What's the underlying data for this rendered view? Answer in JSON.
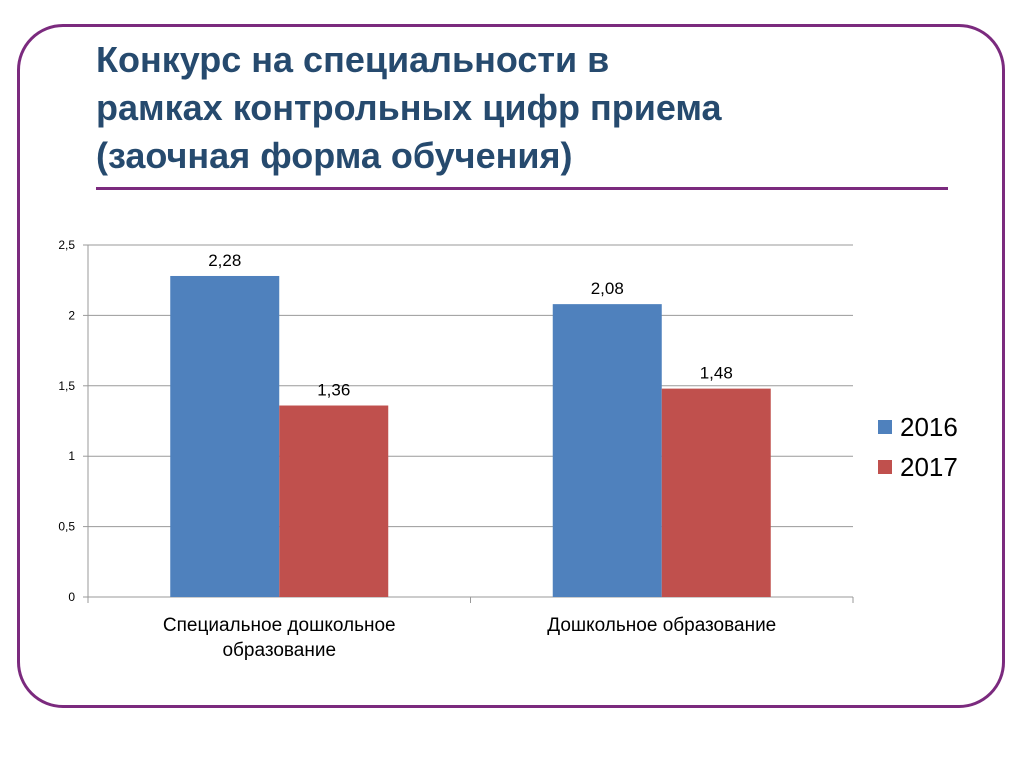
{
  "title": "Конкурс на специальности в\nрамках контрольных цифр приема\n(заочная форма обучения)",
  "colors": {
    "frame": "#7b2a7e",
    "title": "#264a6e",
    "series_2016": "#4f81bd",
    "series_2017": "#c0504d",
    "grid": "#9a9a9a"
  },
  "chart_data": {
    "type": "bar",
    "categories": [
      [
        "Специальное дошкольное",
        "образование"
      ],
      [
        "Дошкольное образование"
      ]
    ],
    "series": [
      {
        "name": "2016",
        "values": [
          2.28,
          2.08
        ],
        "labels": [
          "2,28",
          "2,08"
        ],
        "color": "#4f81bd"
      },
      {
        "name": "2017",
        "values": [
          1.36,
          1.48
        ],
        "labels": [
          "1,36",
          "1,48"
        ],
        "color": "#c0504d"
      }
    ],
    "ylim": [
      0,
      2.5
    ],
    "yticks": [
      0,
      0.5,
      1,
      1.5,
      2,
      2.5
    ],
    "ytick_labels": [
      "0",
      "0,5",
      "1",
      "1,5",
      "2",
      "2,5"
    ],
    "grid": true,
    "legend": "right",
    "xlabel": "",
    "ylabel": ""
  }
}
